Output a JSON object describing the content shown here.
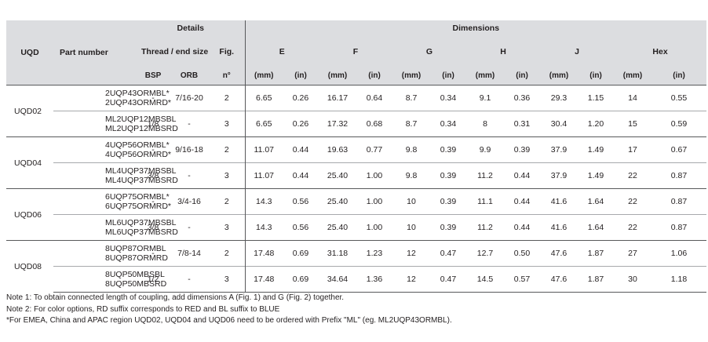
{
  "headers": {
    "uqd": "UQD",
    "part_number": "Part number",
    "details": "Details",
    "dimensions": "Dimensions",
    "thread_end_size": "Thread / end size",
    "fig": "Fig.",
    "dims": [
      "E",
      "F",
      "G",
      "H",
      "J",
      "Hex"
    ],
    "bsp": "BSP",
    "orb": "ORB",
    "fig_unit": "n°",
    "mm": "(mm)",
    "in": "(in)"
  },
  "groups": [
    {
      "uqd": "UQD02",
      "rows": [
        {
          "parts": [
            "2UQP43ORMBL*",
            "2UQP43ORMRD*"
          ],
          "bsp": "-",
          "orb": "7/16-20",
          "fig": "2",
          "values": [
            "6.65",
            "0.26",
            "16.17",
            "0.64",
            "8.7",
            "0.34",
            "9.1",
            "0.36",
            "29.3",
            "1.15",
            "14",
            "0.55"
          ]
        },
        {
          "parts": [
            "ML2UQP12MBSBL",
            "ML2UQP12MBSRD"
          ],
          "bsp": "1/8",
          "orb": "-",
          "fig": "3",
          "values": [
            "6.65",
            "0.26",
            "17.32",
            "0.68",
            "8.7",
            "0.34",
            "8",
            "0.31",
            "30.4",
            "1.20",
            "15",
            "0.59"
          ]
        }
      ]
    },
    {
      "uqd": "UQD04",
      "rows": [
        {
          "parts": [
            "4UQP56ORMBL*",
            "4UQP56ORMRD*"
          ],
          "bsp": "-",
          "orb": "9/16-18",
          "fig": "2",
          "values": [
            "11.07",
            "0.44",
            "19.63",
            "0.77",
            "9.8",
            "0.39",
            "9.9",
            "0.39",
            "37.9",
            "1.49",
            "17",
            "0.67"
          ]
        },
        {
          "parts": [
            "ML4UQP37MBSBL",
            "ML4UQP37MBSRD"
          ],
          "bsp": "3/8",
          "orb": "-",
          "fig": "3",
          "values": [
            "11.07",
            "0.44",
            "25.40",
            "1.00",
            "9.8",
            "0.39",
            "11.2",
            "0.44",
            "37.9",
            "1.49",
            "22",
            "0.87"
          ]
        }
      ]
    },
    {
      "uqd": "UQD06",
      "rows": [
        {
          "parts": [
            "6UQP75ORMBL*",
            "6UQP75ORMRD*"
          ],
          "bsp": "-",
          "orb": "3/4-16",
          "fig": "2",
          "values": [
            "14.3",
            "0.56",
            "25.40",
            "1.00",
            "10",
            "0.39",
            "11.1",
            "0.44",
            "41.6",
            "1.64",
            "22",
            "0.87"
          ]
        },
        {
          "parts": [
            "ML6UQP37MBSBL",
            "ML6UQP37MBSRD"
          ],
          "bsp": "3/8",
          "orb": "-",
          "fig": "3",
          "values": [
            "14.3",
            "0.56",
            "25.40",
            "1.00",
            "10",
            "0.39",
            "11.2",
            "0.44",
            "41.6",
            "1.64",
            "22",
            "0.87"
          ]
        }
      ]
    },
    {
      "uqd": "UQD08",
      "rows": [
        {
          "parts": [
            "8UQP87ORMBL",
            "8UQP87ORMRD"
          ],
          "bsp": "-",
          "orb": "7/8-14",
          "fig": "2",
          "values": [
            "17.48",
            "0.69",
            "31.18",
            "1.23",
            "12",
            "0.47",
            "12.7",
            "0.50",
            "47.6",
            "1.87",
            "27",
            "1.06"
          ]
        },
        {
          "parts": [
            "8UQP50MBSBL",
            "8UQP50MBSRD"
          ],
          "bsp": "1/2",
          "orb": "-",
          "fig": "3",
          "values": [
            "17.48",
            "0.69",
            "34.64",
            "1.36",
            "12",
            "0.47",
            "14.5",
            "0.57",
            "47.6",
            "1.87",
            "30",
            "1.18"
          ]
        }
      ]
    }
  ],
  "notes": [
    "Note 1: To obtain connected length of coupling, add dimensions A (Fig. 1) and G (Fig. 2) together.",
    "Note 2: For color options, RD suffix corresponds to RED and BL suffix to BLUE",
    "*For EMEA, China and APAC region UQD02, UQD04 and UQD06 need to be ordered with Prefix \"ML\" (eg. ML2UQP43ORMBL)."
  ]
}
